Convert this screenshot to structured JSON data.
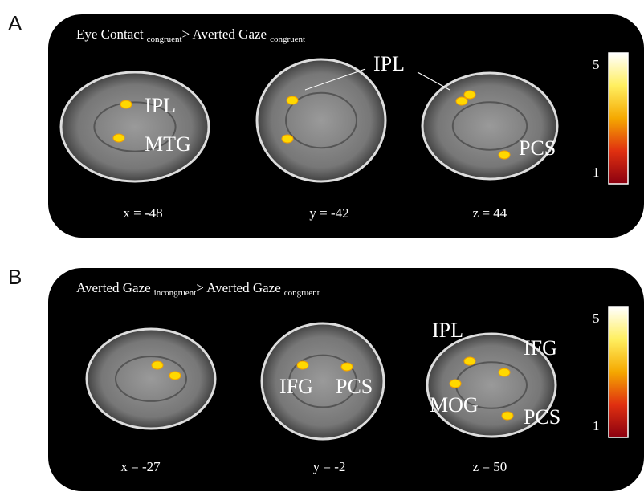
{
  "panels": [
    {
      "letter": "A",
      "title": {
        "part1": "Eye Contact",
        "sub1": "congruent",
        "part2": "> Averted Gaze",
        "sub2": "congruent"
      },
      "views": [
        {
          "coordinate": "x = -48",
          "labels": [
            "IPL",
            "MTG"
          ]
        },
        {
          "coordinate": "y = -42",
          "labels": [
            "IPL"
          ]
        },
        {
          "coordinate": "z = 44",
          "labels": [
            "PCS"
          ]
        }
      ],
      "colorbar": {
        "max": 5,
        "min": 1
      }
    },
    {
      "letter": "B",
      "title": {
        "part1": "Averted Gaze",
        "sub1": "incongruent",
        "part2": "> Averted Gaze",
        "sub2": "congruent"
      },
      "views": [
        {
          "coordinate": "x = -27",
          "labels": []
        },
        {
          "coordinate": "y = -2",
          "labels": [
            "IFG",
            "PCS"
          ]
        },
        {
          "coordinate": "z = 50",
          "labels": [
            "IPL",
            "IFG",
            "MOG",
            "PCS"
          ]
        }
      ],
      "colorbar": {
        "max": 5,
        "min": 1
      }
    }
  ]
}
